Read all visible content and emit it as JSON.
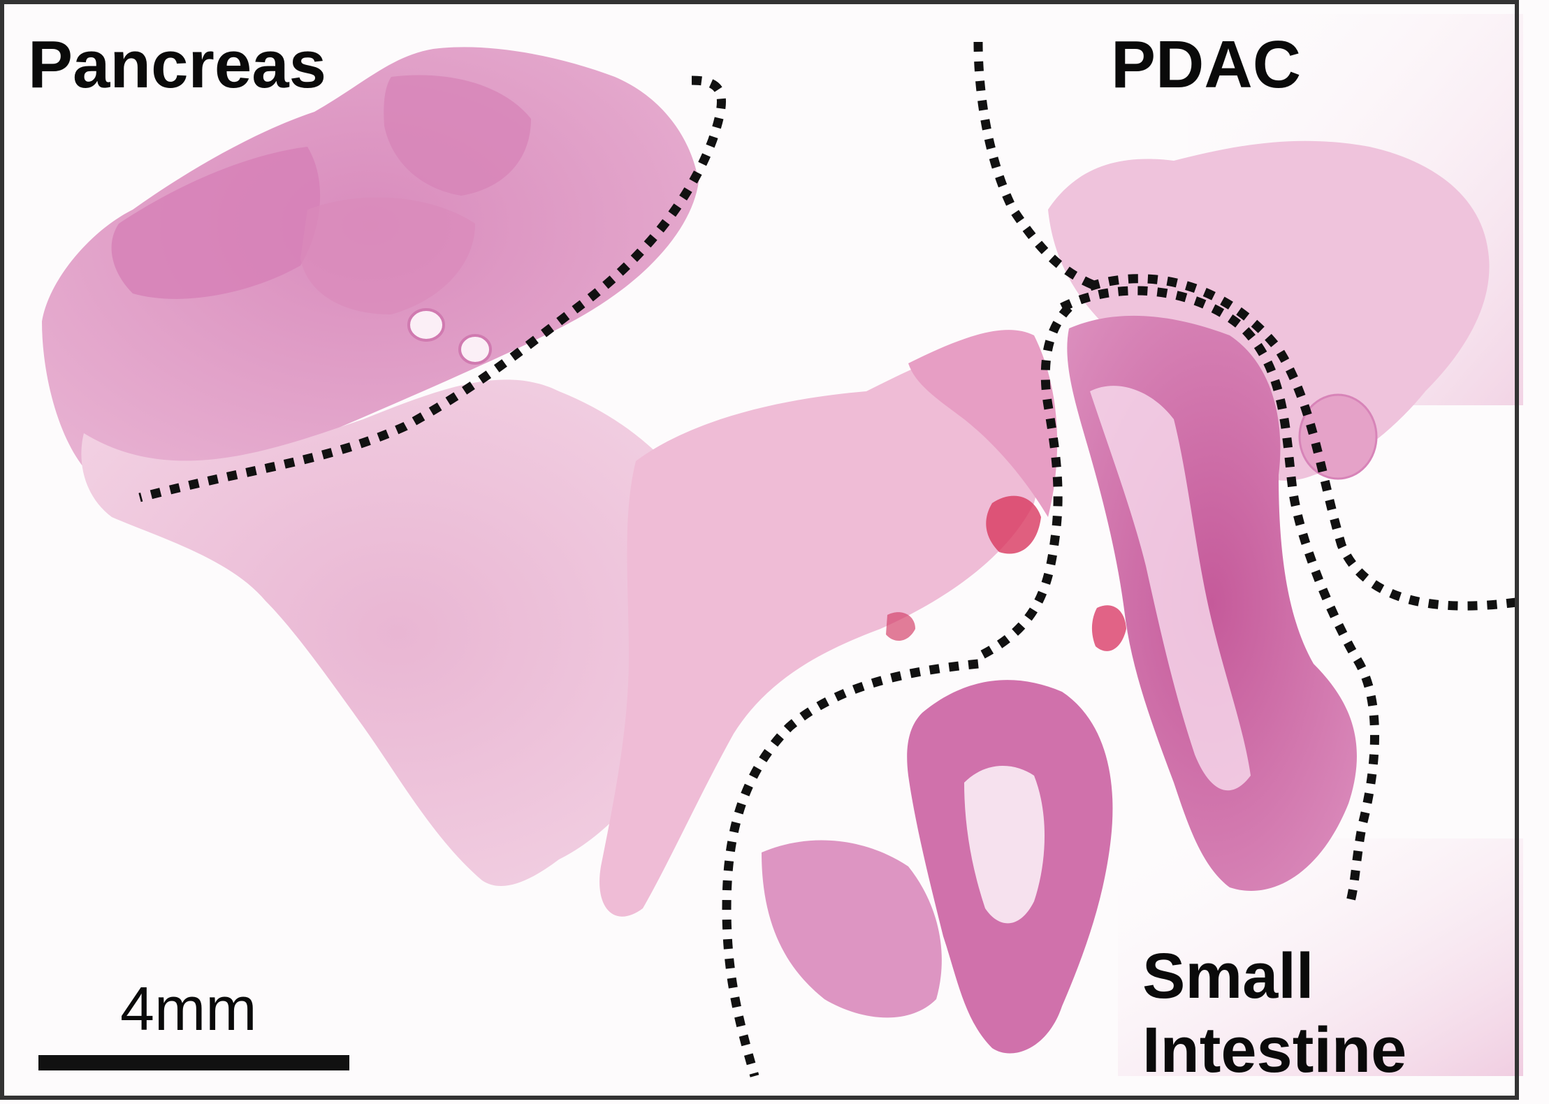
{
  "figure": {
    "regions": {
      "pancreas": "Pancreas",
      "pdac": "PDAC",
      "small_intestine_line1": "Small",
      "small_intestine_line2": "Intestine"
    },
    "scale_bar": {
      "label": "4mm"
    },
    "colors": {
      "background": "#fdfbfc",
      "tissue_light": "#efc6dc",
      "tissue_mid": "#e3a1c6",
      "tissue_dark": "#c9649f",
      "boundary": "#111111"
    }
  }
}
